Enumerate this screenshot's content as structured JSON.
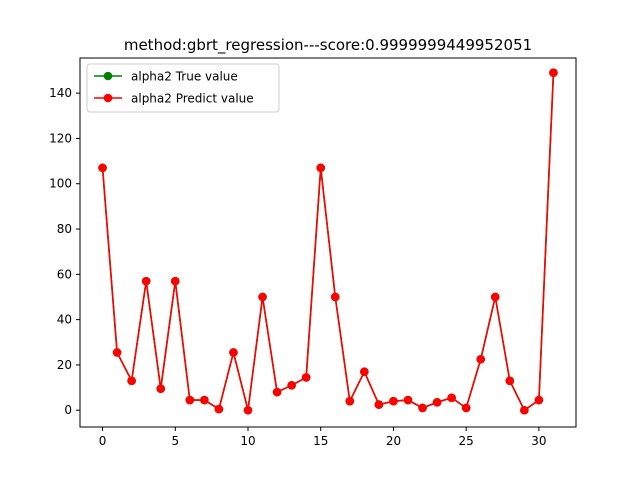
{
  "chart_data": {
    "type": "line",
    "title": "method:gbrt_regression---score:0.9999999449952051",
    "xlabel": "",
    "ylabel": "",
    "xlim": [
      -1.55,
      32.55
    ],
    "ylim": [
      -7.4,
      155.5
    ],
    "xticks": [
      0,
      5,
      10,
      15,
      20,
      25,
      30
    ],
    "yticks": [
      0,
      20,
      40,
      60,
      80,
      100,
      120,
      140
    ],
    "grid": false,
    "legend_position": "upper-left",
    "x": [
      0,
      1,
      2,
      3,
      4,
      5,
      6,
      7,
      8,
      9,
      10,
      11,
      12,
      13,
      14,
      15,
      16,
      17,
      18,
      19,
      20,
      21,
      22,
      23,
      24,
      25,
      26,
      27,
      28,
      29,
      30,
      31
    ],
    "series": [
      {
        "name": "alpha2 True value",
        "color": "#008000",
        "marker": "circle",
        "values": [
          107,
          25.5,
          13,
          57,
          9.5,
          57,
          4.5,
          4.5,
          0.5,
          25.5,
          0,
          50,
          8,
          11,
          14.5,
          107,
          50,
          4,
          17,
          2.5,
          4,
          4.5,
          1,
          3.5,
          5.5,
          1,
          22.5,
          50,
          13,
          0,
          4.5,
          149
        ]
      },
      {
        "name": "alpha2 Predict value",
        "color": "#ff0000",
        "marker": "circle",
        "values": [
          107,
          25.5,
          13,
          57,
          9.5,
          57,
          4.5,
          4.5,
          0.5,
          25.5,
          0,
          50,
          8,
          11,
          14.5,
          107,
          50,
          4,
          17,
          2.5,
          4,
          4.5,
          1,
          3.5,
          5.5,
          1,
          22.5,
          50,
          13,
          0,
          4.5,
          149
        ]
      }
    ]
  }
}
